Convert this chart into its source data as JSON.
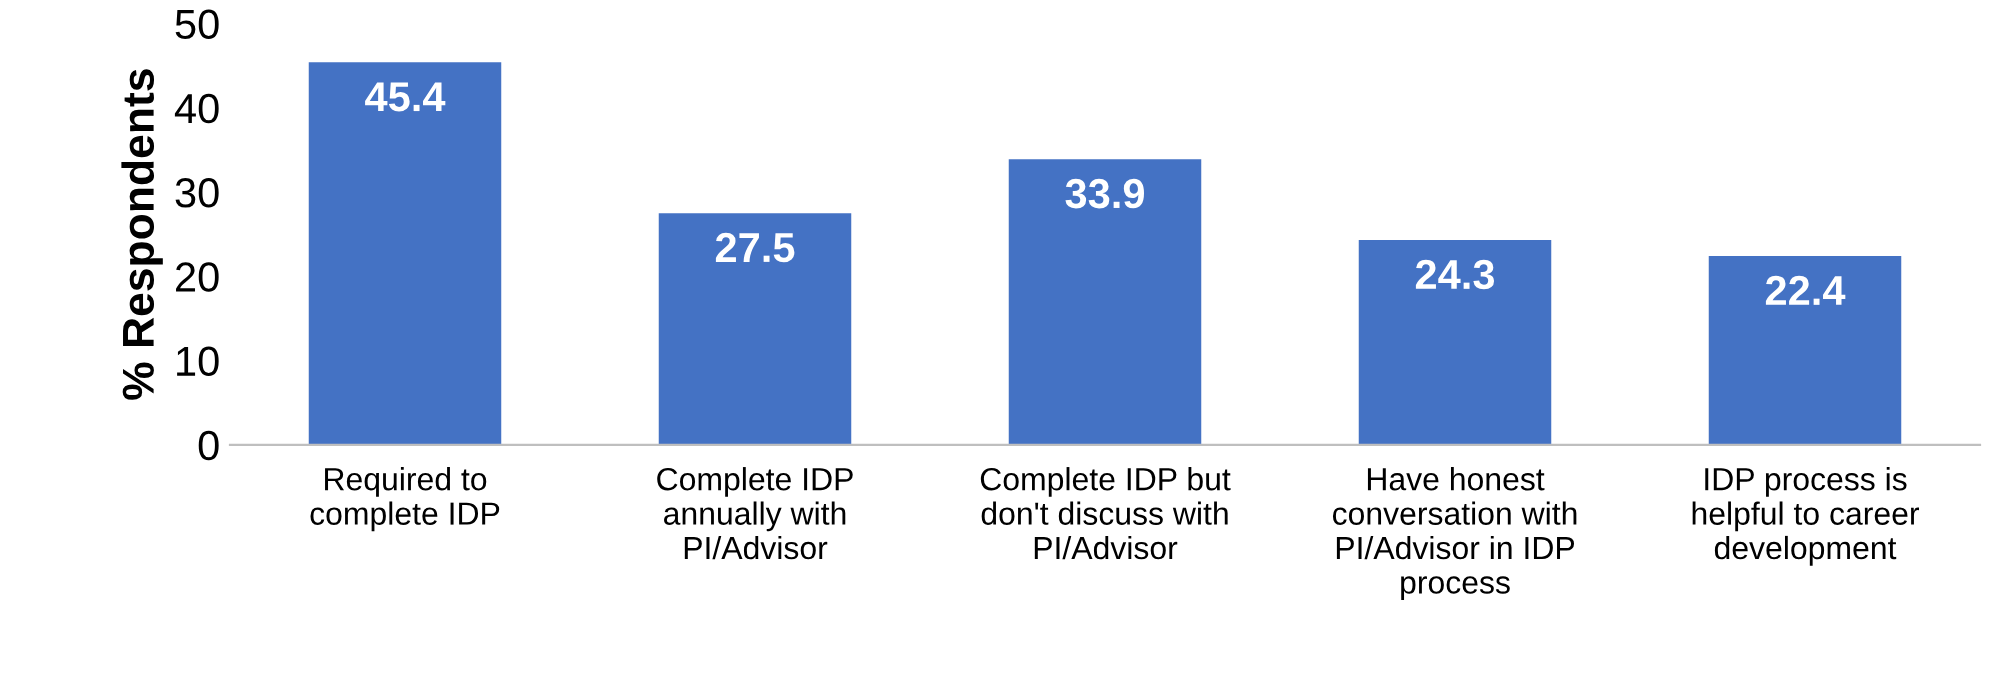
{
  "chart_data": {
    "type": "bar",
    "ylabel": "% Respondents",
    "categories": [
      "Required to\ncomplete IDP",
      "Complete IDP\nannually with\nPI/Advisor",
      "Complete IDP but\ndon't discuss with\nPI/Advisor",
      "Have honest\nconversation with\nPI/Advisor in IDP\nprocess",
      "IDP process is\nhelpful to career\ndevelopment"
    ],
    "values": [
      45.4,
      27.5,
      33.9,
      24.3,
      22.4
    ],
    "color": "#4472c4",
    "ylim": [
      0,
      50
    ],
    "yticks": [
      0,
      10,
      20,
      30,
      40,
      50
    ],
    "grid": false,
    "legend": false,
    "data_labels": true
  }
}
